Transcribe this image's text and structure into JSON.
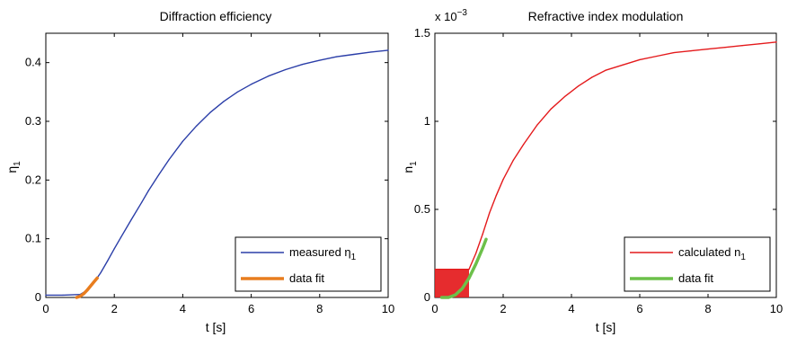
{
  "chart_data": [
    {
      "type": "line",
      "title": "Diffraction efficiency",
      "xlabel": "t [s]",
      "ylabel_main": "η",
      "ylabel_sub": "1",
      "xlim": [
        0,
        10
      ],
      "ylim": [
        0,
        0.45
      ],
      "xticks": [
        "0",
        "2",
        "4",
        "6",
        "8",
        "10"
      ],
      "yticks": [
        "0",
        "0.1",
        "0.2",
        "0.3",
        "0.4"
      ],
      "legend_position": "bottom-right",
      "series": [
        {
          "name_main": "measured η",
          "name_sub": "1",
          "color": "#2b3ea8",
          "x": [
            0,
            0.5,
            1.0,
            1.2,
            1.4,
            1.6,
            1.8,
            2.0,
            2.2,
            2.5,
            2.8,
            3.0,
            3.3,
            3.6,
            4.0,
            4.4,
            4.8,
            5.2,
            5.6,
            6.0,
            6.5,
            7.0,
            7.5,
            8.0,
            8.5,
            9.0,
            9.5,
            10.0
          ],
          "y": [
            0.004,
            0.004,
            0.005,
            0.012,
            0.025,
            0.042,
            0.062,
            0.083,
            0.103,
            0.133,
            0.162,
            0.182,
            0.209,
            0.235,
            0.266,
            0.292,
            0.315,
            0.334,
            0.35,
            0.363,
            0.377,
            0.388,
            0.397,
            0.404,
            0.41,
            0.414,
            0.418,
            0.421
          ]
        },
        {
          "name": "data fit",
          "color": "#e87d1e",
          "x": [
            0.9,
            1.0,
            1.1,
            1.2,
            1.3,
            1.4,
            1.5
          ],
          "y": [
            0.0,
            0.002,
            0.006,
            0.012,
            0.019,
            0.026,
            0.033
          ]
        }
      ]
    },
    {
      "type": "line",
      "title": "Refractive index modulation",
      "xlabel": "t [s]",
      "ylabel_main": "n",
      "ylabel_sub": "1",
      "scale_label_main": "x 10",
      "scale_label_exp": "−3",
      "xlim": [
        0,
        10
      ],
      "ylim": [
        0,
        1.5
      ],
      "xticks": [
        "0",
        "2",
        "4",
        "6",
        "8",
        "10"
      ],
      "yticks": [
        "0",
        "0.5",
        "1",
        "1.5"
      ],
      "legend_position": "bottom-right",
      "noise_band": {
        "x_start": 0.0,
        "x_end": 1.0,
        "y_max": 0.16
      },
      "series": [
        {
          "name_main": "calculated n",
          "name_sub": "1",
          "color": "#e41a1c",
          "x": [
            1.0,
            1.2,
            1.4,
            1.6,
            1.8,
            2.0,
            2.3,
            2.6,
            3.0,
            3.4,
            3.8,
            4.2,
            4.6,
            5.0,
            5.5,
            6.0,
            6.5,
            7.0,
            7.5,
            8.0,
            8.5,
            9.0,
            9.5,
            10.0
          ],
          "y": [
            0.16,
            0.25,
            0.36,
            0.48,
            0.58,
            0.67,
            0.78,
            0.87,
            0.98,
            1.07,
            1.14,
            1.2,
            1.25,
            1.29,
            1.32,
            1.35,
            1.37,
            1.39,
            1.4,
            1.41,
            1.42,
            1.43,
            1.44,
            1.45
          ]
        },
        {
          "name": "data fit",
          "color": "#6cc04a",
          "x": [
            0.2,
            0.4,
            0.6,
            0.8,
            1.0,
            1.2,
            1.4,
            1.5
          ],
          "y": [
            0.0,
            0.0,
            0.015,
            0.05,
            0.11,
            0.19,
            0.28,
            0.33
          ]
        }
      ]
    }
  ]
}
